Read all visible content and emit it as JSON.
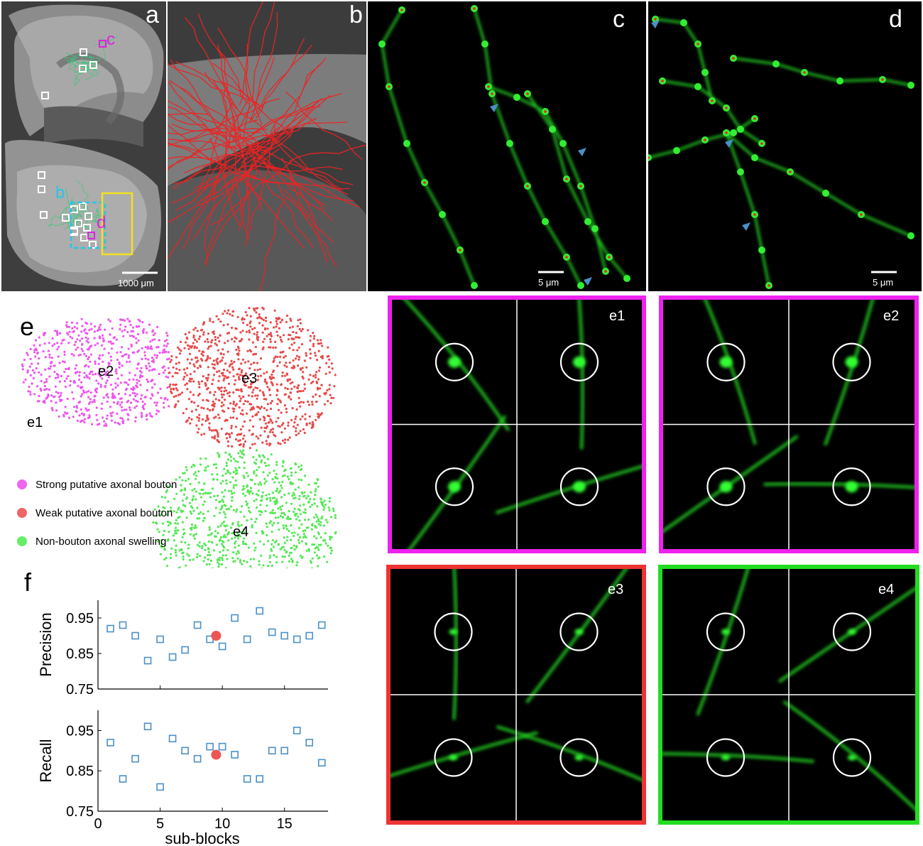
{
  "panels": {
    "a": {
      "label": "a",
      "scale_text": "1000 μm",
      "inset_labels": {
        "b": "b",
        "c": "c",
        "d": "d"
      }
    },
    "b": {
      "label": "b"
    },
    "c": {
      "label": "c",
      "scale_text": "5 μm"
    },
    "d": {
      "label": "d",
      "scale_text": "5 μm"
    },
    "e": {
      "label": "e",
      "cluster_labels": [
        "e1",
        "e2",
        "e3",
        "e4"
      ],
      "legend": [
        {
          "label": "Strong putative axonal bouton",
          "color": "#ee66ee"
        },
        {
          "label": "Weak putative axonal bouton",
          "color": "#ee6666"
        },
        {
          "label": "Non-bouton axonal swelling",
          "color": "#66ee66"
        }
      ]
    },
    "f": {
      "label": "f"
    },
    "tiles": [
      {
        "label": "e1",
        "border_color": "#ee22ee"
      },
      {
        "label": "e2",
        "border_color": "#ee22ee"
      },
      {
        "label": "e3",
        "border_color": "#ee3333"
      },
      {
        "label": "e4",
        "border_color": "#22dd22"
      }
    ]
  },
  "colors": {
    "tracing_red": "#ee2222",
    "fluorescence_green": "#22dd22",
    "marker_blue": "#4a90c8",
    "highlight_red": "#ee5555",
    "yellow_box": "#f2e022",
    "cyan_box": "#22c8e8"
  },
  "chart_data": [
    {
      "type": "scatter",
      "title": "",
      "xlabel": "",
      "ylabel": "Precision",
      "ylim": [
        0.75,
        1.0
      ],
      "yticks": [
        "0.95",
        "0.85",
        "0.75"
      ],
      "series": [
        {
          "x": [
            1,
            2,
            3,
            4,
            5,
            6,
            7,
            8,
            9,
            10,
            11,
            12,
            13,
            14,
            15,
            16,
            17,
            18
          ],
          "y": [
            0.92,
            0.93,
            0.9,
            0.83,
            0.89,
            0.84,
            0.86,
            0.93,
            0.89,
            0.87,
            0.95,
            0.89,
            0.97,
            0.91,
            0.9,
            0.89,
            0.9,
            0.93
          ],
          "marker": "square-open",
          "color": "#4a90c8"
        },
        {
          "x": [
            9.5
          ],
          "y": [
            0.9
          ],
          "marker": "circle-filled",
          "color": "#ee5555"
        }
      ]
    },
    {
      "type": "scatter",
      "title": "",
      "xlabel": "sub-blocks",
      "ylabel": "Recall",
      "xlim": [
        0,
        18.5
      ],
      "ylim": [
        0.75,
        1.0
      ],
      "xticks": [
        "0",
        "5",
        "10",
        "15"
      ],
      "yticks": [
        "0.95",
        "0.85",
        "0.75"
      ],
      "series": [
        {
          "x": [
            1,
            2,
            3,
            4,
            5,
            6,
            7,
            8,
            9,
            10,
            11,
            12,
            13,
            14,
            15,
            16,
            17,
            18
          ],
          "y": [
            0.92,
            0.83,
            0.88,
            0.96,
            0.81,
            0.93,
            0.9,
            0.88,
            0.91,
            0.91,
            0.89,
            0.83,
            0.83,
            0.9,
            0.9,
            0.95,
            0.92,
            0.87
          ],
          "marker": "square-open",
          "color": "#4a90c8"
        },
        {
          "x": [
            9.5
          ],
          "y": [
            0.89
          ],
          "marker": "circle-filled",
          "color": "#ee5555"
        }
      ]
    }
  ]
}
